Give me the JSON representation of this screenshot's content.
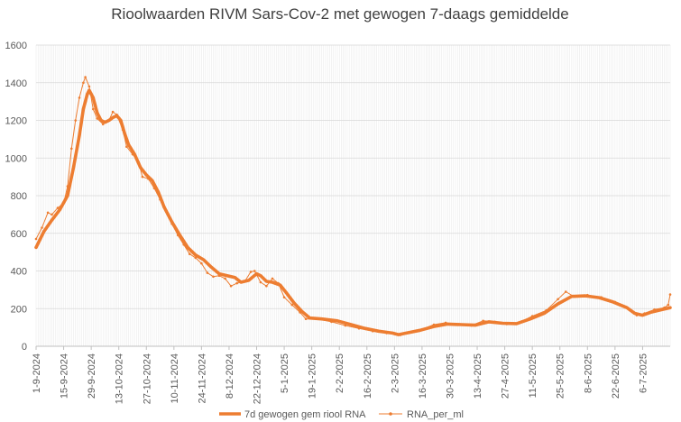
{
  "chart_data": {
    "type": "line",
    "title": "Rioolwaarden RIVM Sars-Cov-2 met gewogen 7-daags gemiddelde",
    "xlabel": "",
    "ylabel": "",
    "ylim": [
      0,
      1600
    ],
    "yticks": [
      0,
      200,
      400,
      600,
      800,
      1000,
      1200,
      1400,
      1600
    ],
    "xlim": [
      "1-9-2024",
      "20-7-2025"
    ],
    "xticks": [
      "1-9-2024",
      "15-9-2024",
      "29-9-2024",
      "13-10-2024",
      "27-10-2024",
      "10-11-2024",
      "24-11-2024",
      "8-12-2024",
      "22-12-2024",
      "5-1-2025",
      "19-1-2025",
      "2-2-2025",
      "16-2-2025",
      "2-3-2025",
      "16-3-2025",
      "30-3-2025",
      "13-4-2025",
      "27-4-2025",
      "11-5-2025",
      "25-5-2025",
      "8-6-2025",
      "22-6-2025",
      "6-7-2025"
    ],
    "grid": {
      "horizontal": true,
      "vertical": true
    },
    "legend_position": "bottom",
    "colors": {
      "series": "#ED7D31",
      "grid": "#D9D9D9",
      "axis": "#BFBFBF",
      "text": "#595959"
    },
    "series": [
      {
        "name": "7d gewogen gem riool RNA",
        "style": "thick-line",
        "points": [
          [
            "2024-09-01",
            525
          ],
          [
            "2024-09-05",
            610
          ],
          [
            "2024-09-09",
            670
          ],
          [
            "2024-09-13",
            725
          ],
          [
            "2024-09-17",
            800
          ],
          [
            "2024-09-20",
            950
          ],
          [
            "2024-09-23",
            1120
          ],
          [
            "2024-09-25",
            1260
          ],
          [
            "2024-09-27",
            1340
          ],
          [
            "2024-09-28",
            1360
          ],
          [
            "2024-09-30",
            1320
          ],
          [
            "2024-10-02",
            1240
          ],
          [
            "2024-10-04",
            1200
          ],
          [
            "2024-10-06",
            1190
          ],
          [
            "2024-10-08",
            1200
          ],
          [
            "2024-10-10",
            1215
          ],
          [
            "2024-10-12",
            1225
          ],
          [
            "2024-10-14",
            1200
          ],
          [
            "2024-10-16",
            1130
          ],
          [
            "2024-10-18",
            1070
          ],
          [
            "2024-10-21",
            1020
          ],
          [
            "2024-10-24",
            950
          ],
          [
            "2024-10-27",
            910
          ],
          [
            "2024-10-30",
            880
          ],
          [
            "2024-11-02",
            820
          ],
          [
            "2024-11-05",
            740
          ],
          [
            "2024-11-09",
            660
          ],
          [
            "2024-11-13",
            590
          ],
          [
            "2024-11-17",
            525
          ],
          [
            "2024-11-21",
            485
          ],
          [
            "2024-11-25",
            460
          ],
          [
            "2024-11-29",
            420
          ],
          [
            "2024-12-03",
            385
          ],
          [
            "2024-12-07",
            375
          ],
          [
            "2024-12-11",
            365
          ],
          [
            "2024-12-14",
            340
          ],
          [
            "2024-12-18",
            350
          ],
          [
            "2024-12-22",
            385
          ],
          [
            "2024-12-24",
            375
          ],
          [
            "2024-12-27",
            345
          ],
          [
            "2024-12-30",
            340
          ],
          [
            "2025-01-03",
            325
          ],
          [
            "2025-01-06",
            285
          ],
          [
            "2025-01-10",
            230
          ],
          [
            "2025-01-14",
            185
          ],
          [
            "2025-01-18",
            150
          ],
          [
            "2025-01-24",
            145
          ],
          [
            "2025-02-01",
            135
          ],
          [
            "2025-02-08",
            115
          ],
          [
            "2025-02-15",
            95
          ],
          [
            "2025-02-22",
            80
          ],
          [
            "2025-03-01",
            70
          ],
          [
            "2025-03-04",
            62
          ],
          [
            "2025-03-08",
            70
          ],
          [
            "2025-03-15",
            85
          ],
          [
            "2025-03-22",
            105
          ],
          [
            "2025-03-29",
            118
          ],
          [
            "2025-04-05",
            115
          ],
          [
            "2025-04-12",
            112
          ],
          [
            "2025-04-19",
            130
          ],
          [
            "2025-04-26",
            122
          ],
          [
            "2025-05-03",
            120
          ],
          [
            "2025-05-10",
            145
          ],
          [
            "2025-05-17",
            175
          ],
          [
            "2025-05-24",
            225
          ],
          [
            "2025-05-31",
            265
          ],
          [
            "2025-06-07",
            268
          ],
          [
            "2025-06-14",
            258
          ],
          [
            "2025-06-21",
            235
          ],
          [
            "2025-06-28",
            205
          ],
          [
            "2025-07-02",
            175
          ],
          [
            "2025-07-06",
            165
          ],
          [
            "2025-07-10",
            180
          ],
          [
            "2025-07-16",
            195
          ],
          [
            "2025-07-20",
            205
          ]
        ]
      },
      {
        "name": "RNA_per_ml",
        "style": "thin-line-markers",
        "points": [
          [
            "2024-09-01",
            570
          ],
          [
            "2024-09-04",
            630
          ],
          [
            "2024-09-07",
            710
          ],
          [
            "2024-09-09",
            700
          ],
          [
            "2024-09-12",
            735
          ],
          [
            "2024-09-15",
            760
          ],
          [
            "2024-09-17",
            850
          ],
          [
            "2024-09-19",
            1050
          ],
          [
            "2024-09-21",
            1200
          ],
          [
            "2024-09-23",
            1320
          ],
          [
            "2024-09-25",
            1400
          ],
          [
            "2024-09-26",
            1430
          ],
          [
            "2024-09-28",
            1380
          ],
          [
            "2024-09-30",
            1260
          ],
          [
            "2024-10-02",
            1210
          ],
          [
            "2024-10-05",
            1180
          ],
          [
            "2024-10-08",
            1200
          ],
          [
            "2024-10-10",
            1245
          ],
          [
            "2024-10-12",
            1230
          ],
          [
            "2024-10-15",
            1150
          ],
          [
            "2024-10-17",
            1060
          ],
          [
            "2024-10-20",
            1020
          ],
          [
            "2024-10-23",
            980
          ],
          [
            "2024-10-25",
            900
          ],
          [
            "2024-10-28",
            890
          ],
          [
            "2024-10-31",
            840
          ],
          [
            "2024-11-03",
            780
          ],
          [
            "2024-11-06",
            720
          ],
          [
            "2024-11-09",
            650
          ],
          [
            "2024-11-12",
            590
          ],
          [
            "2024-11-15",
            540
          ],
          [
            "2024-11-18",
            490
          ],
          [
            "2024-11-21",
            470
          ],
          [
            "2024-11-24",
            440
          ],
          [
            "2024-11-27",
            390
          ],
          [
            "2024-11-30",
            370
          ],
          [
            "2024-12-03",
            375
          ],
          [
            "2024-12-06",
            360
          ],
          [
            "2024-12-09",
            320
          ],
          [
            "2024-12-12",
            335
          ],
          [
            "2024-12-16",
            345
          ],
          [
            "2024-12-19",
            395
          ],
          [
            "2024-12-21",
            400
          ],
          [
            "2024-12-24",
            340
          ],
          [
            "2024-12-27",
            320
          ],
          [
            "2024-12-30",
            360
          ],
          [
            "2025-01-02",
            335
          ],
          [
            "2025-01-05",
            260
          ],
          [
            "2025-01-09",
            220
          ],
          [
            "2025-01-13",
            180
          ],
          [
            "2025-01-16",
            145
          ],
          [
            "2025-01-22",
            145
          ],
          [
            "2025-01-29",
            130
          ],
          [
            "2025-02-05",
            110
          ],
          [
            "2025-02-12",
            95
          ],
          [
            "2025-02-19",
            80
          ],
          [
            "2025-02-26",
            70
          ],
          [
            "2025-03-02",
            65
          ],
          [
            "2025-03-05",
            60
          ],
          [
            "2025-03-10",
            75
          ],
          [
            "2025-03-16",
            90
          ],
          [
            "2025-03-22",
            115
          ],
          [
            "2025-03-28",
            125
          ],
          [
            "2025-04-03",
            115
          ],
          [
            "2025-04-10",
            110
          ],
          [
            "2025-04-16",
            135
          ],
          [
            "2025-04-22",
            130
          ],
          [
            "2025-04-28",
            118
          ],
          [
            "2025-05-04",
            125
          ],
          [
            "2025-05-11",
            160
          ],
          [
            "2025-05-18",
            190
          ],
          [
            "2025-05-24",
            250
          ],
          [
            "2025-05-28",
            290
          ],
          [
            "2025-06-01",
            265
          ],
          [
            "2025-06-08",
            272
          ],
          [
            "2025-06-15",
            260
          ],
          [
            "2025-06-22",
            235
          ],
          [
            "2025-06-29",
            195
          ],
          [
            "2025-07-03",
            165
          ],
          [
            "2025-07-07",
            175
          ],
          [
            "2025-07-12",
            195
          ],
          [
            "2025-07-17",
            205
          ],
          [
            "2025-07-19",
            220
          ],
          [
            "2025-07-20",
            275
          ]
        ]
      }
    ]
  }
}
